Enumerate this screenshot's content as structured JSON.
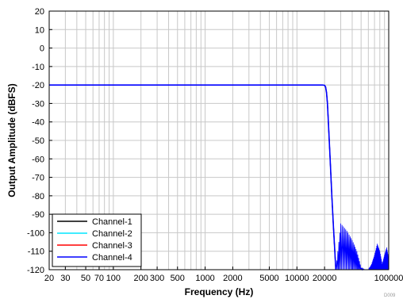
{
  "chart_data": {
    "type": "line",
    "xlabel": "Frequency (Hz)",
    "ylabel": "Output Amplitude (dBFS)",
    "x_scale": "log",
    "xlim": [
      20,
      100000
    ],
    "ylim": [
      -120,
      20
    ],
    "grid": true,
    "legend_position": "bottom-left",
    "x_ticks": [
      20,
      30,
      50,
      70,
      100,
      200,
      300,
      500,
      1000,
      2000,
      5000,
      10000,
      20000,
      100000
    ],
    "x_tick_labels": [
      "20",
      "30",
      "50",
      "70",
      "100",
      "200",
      "300",
      "500",
      "1000",
      "2000",
      "5000",
      "10000",
      "20000",
      "100000"
    ],
    "y_ticks": [
      -120,
      -110,
      -100,
      -90,
      -80,
      -70,
      -60,
      -50,
      -40,
      -30,
      -20,
      -10,
      0,
      10,
      20
    ],
    "y_tick_labels": [
      "-120",
      "-110",
      "-100",
      "-90",
      "-80",
      "-70",
      "-60",
      "-50",
      "-40",
      "-30",
      "-20",
      "-10",
      "0",
      "10",
      "20"
    ],
    "x": [
      20,
      100,
      1000,
      10000,
      19000,
      20000,
      20500,
      21000,
      21500,
      22000,
      23000,
      24000,
      25000,
      26000,
      26500
    ],
    "series": [
      {
        "name": "Channel-1",
        "color": "#000000",
        "values": [
          -20,
          -20,
          -20,
          -20,
          -20,
          -20.2,
          -21,
          -24,
          -30,
          -40,
          -60,
          -80,
          -97,
          -112,
          -120
        ]
      },
      {
        "name": "Channel-2",
        "color": "#00e5ff",
        "values": [
          -20,
          -20,
          -20,
          -20,
          -20,
          -20.2,
          -21,
          -24,
          -30,
          -40,
          -60,
          -80,
          -97,
          -112,
          -120
        ]
      },
      {
        "name": "Channel-3",
        "color": "#ff0000",
        "values": [
          -20,
          -20,
          -20,
          -20,
          -20,
          -20.2,
          -21,
          -24,
          -30,
          -40,
          -60,
          -80,
          -97,
          -112,
          -120
        ]
      },
      {
        "name": "Channel-4",
        "color": "#0000ff",
        "values": [
          -20,
          -20,
          -20,
          -20,
          -20,
          -20.2,
          -21,
          -24,
          -30,
          -40,
          -60,
          -80,
          -97,
          -112,
          -120
        ]
      }
    ],
    "stopband_ripple": {
      "x": [
        26500,
        30000,
        35000,
        40000,
        45000,
        50000,
        55000,
        60000,
        65000,
        70000,
        75000,
        80000,
        85000,
        90000,
        95000,
        100000
      ],
      "values": [
        -120,
        -95,
        -99,
        -104,
        -110,
        -119,
        -120,
        -120,
        -117,
        -112,
        -106,
        -110,
        -117,
        -112,
        -108,
        -114
      ]
    }
  },
  "figure_mark": "D009"
}
